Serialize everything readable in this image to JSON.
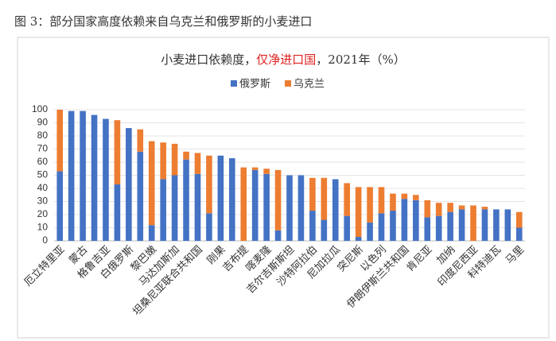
{
  "caption": "图 3：部分国家高度依赖来自乌克兰和俄罗斯的小麦进口",
  "chart_data": {
    "type": "stacked_bar",
    "title": [
      "小麦进口依赖度，",
      "仅净进口国",
      "，2021年（%）"
    ],
    "categories": [
      "厄立特里亚",
      null,
      "蒙古",
      null,
      "格鲁吉亚",
      null,
      "白俄罗斯",
      null,
      "黎巴嫩",
      null,
      "马达加斯加",
      null,
      "坦桑尼亚联合共和国",
      null,
      "刚果",
      null,
      "吉布提",
      null,
      "喀麦隆",
      null,
      "吉尔吉斯斯坦",
      null,
      "沙特阿拉伯",
      null,
      "尼加拉瓜",
      null,
      "突尼斯",
      null,
      "以色列",
      null,
      "伊朗伊斯兰共和国",
      null,
      "肯尼亚",
      null,
      "加纳",
      null,
      "印度尼西亚",
      null,
      "科特迪瓦",
      null,
      "马里"
    ],
    "series": [
      {
        "name": "俄罗斯",
        "color": "#4472c4",
        "values": [
          53,
          99,
          99,
          96,
          93,
          43,
          86,
          68,
          12,
          47,
          50,
          62,
          51,
          21,
          65,
          63,
          0,
          54,
          51,
          8,
          50,
          50,
          23,
          16,
          47,
          19,
          3,
          14,
          21,
          23,
          32,
          31,
          18,
          19,
          22,
          24,
          0,
          24,
          24,
          24,
          10
        ]
      },
      {
        "name": "乌克兰",
        "color": "#ed7d31",
        "values": [
          47,
          0,
          0,
          0,
          0,
          49,
          0,
          17,
          64,
          28,
          24,
          6,
          16,
          44,
          0,
          0,
          56,
          2,
          4,
          46,
          0,
          0,
          25,
          32,
          0,
          25,
          38,
          27,
          20,
          13,
          4,
          4,
          13,
          10,
          7,
          3,
          27,
          2,
          0,
          0,
          12
        ]
      }
    ],
    "ylim": [
      0,
      100
    ],
    "yticks": [
      0,
      10,
      20,
      30,
      40,
      50,
      60,
      70,
      80,
      90,
      100
    ],
    "legend": "top",
    "title_highlight_color": "#e02020"
  }
}
